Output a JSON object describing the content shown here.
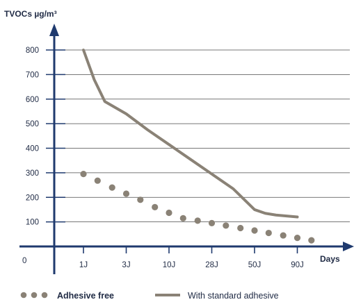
{
  "chart_data": {
    "type": "line",
    "ylabel": "TVOCs µg/m³",
    "xlabel": "Days",
    "origin_label": "0",
    "ylim": [
      0,
      850
    ],
    "yticks": [
      100,
      200,
      300,
      400,
      500,
      600,
      700,
      800
    ],
    "x_tick_labels": [
      "1J",
      "3J",
      "10J",
      "28J",
      "50J",
      "90J"
    ],
    "grid": "horizontal",
    "legend_position": "bottom",
    "series": [
      {
        "name": "With standard adhesive",
        "style": "solid-line",
        "color": "#8a8276",
        "points": [
          [
            0,
            800
          ],
          [
            0.25,
            680
          ],
          [
            0.5,
            590
          ],
          [
            1,
            540
          ],
          [
            1.5,
            475
          ],
          [
            2,
            415
          ],
          [
            2.5,
            355
          ],
          [
            3,
            295
          ],
          [
            3.5,
            235
          ],
          [
            4,
            150
          ],
          [
            4.25,
            135
          ],
          [
            4.5,
            128
          ],
          [
            5,
            120
          ]
        ]
      },
      {
        "name": "Adhesive free",
        "style": "dotted",
        "color": "#8a8276",
        "points": [
          [
            0,
            295
          ],
          [
            0.33,
            268
          ],
          [
            0.67,
            240
          ],
          [
            1,
            215
          ],
          [
            1.33,
            190
          ],
          [
            1.67,
            160
          ],
          [
            2,
            137
          ],
          [
            2.33,
            115
          ],
          [
            2.67,
            105
          ],
          [
            3,
            95
          ],
          [
            3.33,
            85
          ],
          [
            3.67,
            75
          ],
          [
            4,
            65
          ],
          [
            4.33,
            55
          ],
          [
            4.67,
            45
          ],
          [
            5,
            35
          ],
          [
            5.33,
            25
          ]
        ]
      }
    ]
  },
  "legend": [
    {
      "label": "Adhesive free",
      "marker": "dots"
    },
    {
      "label": "With standard adhesive",
      "marker": "line"
    }
  ],
  "colors": {
    "axis": "#1f3a6e",
    "grid": "#4a4a4a",
    "series": "#8a8276",
    "text": "#1f2a44"
  }
}
